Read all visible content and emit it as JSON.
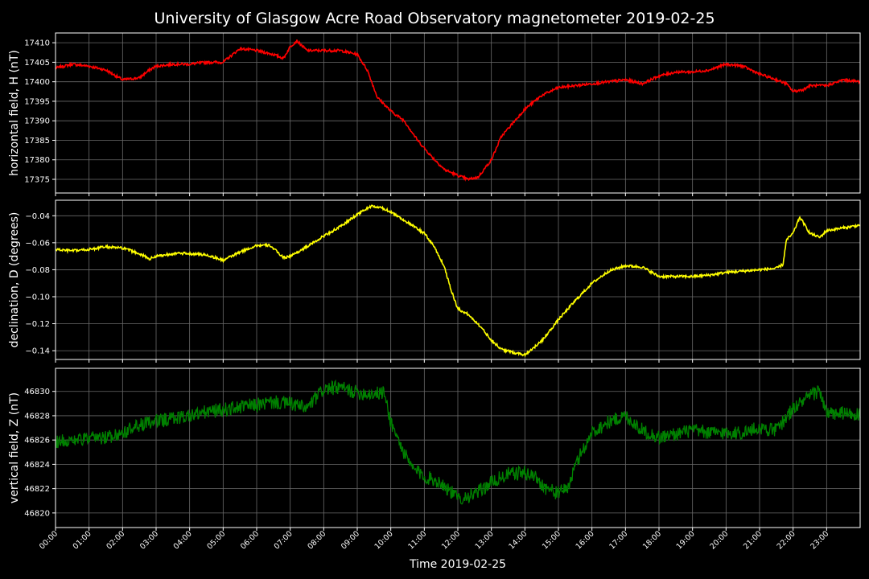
{
  "figure": {
    "title": "University of Glasgow Acre Road Observatory magnetometer 2019-02-25",
    "background": "#000000",
    "foreground": "#ffffff",
    "grid_color": "#6a6a6a"
  },
  "chart_data": [
    {
      "type": "line",
      "panel": "top",
      "title": "",
      "ylabel": "horizontal field, H (nT)",
      "color": "#ff0000",
      "ylim": [
        17371.5,
        17412.5
      ],
      "yticks": [
        17375,
        17380,
        17385,
        17390,
        17395,
        17400,
        17405,
        17410
      ],
      "xlim": [
        0,
        24
      ],
      "grid": true,
      "series": [
        {
          "x": [
            0,
            0.5,
            1,
            1.5,
            2,
            2.5,
            2.8,
            3,
            3.5,
            4,
            4.5,
            5,
            5.5,
            6,
            6.5,
            6.8,
            7,
            7.2,
            7.5,
            8,
            8.5,
            9,
            9.3,
            9.6,
            10,
            10.4,
            10.8,
            11.2,
            11.6,
            12,
            12.3,
            12.6,
            13,
            13.3,
            13.6,
            14,
            14.5,
            15,
            15.5,
            16,
            16.5,
            17,
            17.5,
            18,
            18.5,
            19,
            19.5,
            20,
            20.5,
            21,
            21.5,
            21.8,
            22,
            22.3,
            22.5,
            23,
            23.5,
            24
          ],
          "y": [
            17403.5,
            17404.5,
            17404,
            17403,
            17400.5,
            17401,
            17403,
            17404,
            17404.5,
            17404.5,
            17405,
            17405,
            17408.5,
            17408,
            17407,
            17406,
            17409,
            17410.5,
            17408,
            17408,
            17408,
            17407,
            17403,
            17396,
            17392.5,
            17390,
            17385,
            17381,
            17377.5,
            17376,
            17375,
            17375.5,
            17380,
            17386,
            17389,
            17393,
            17396.5,
            17398.5,
            17399,
            17399.5,
            17400,
            17400.5,
            17399.5,
            17401.5,
            17402.5,
            17402.5,
            17403,
            17404.5,
            17404,
            17402,
            17400.5,
            17399.5,
            17397.5,
            17398,
            17399,
            17399,
            17400.5,
            17400
          ]
        }
      ]
    },
    {
      "type": "line",
      "panel": "middle",
      "title": "",
      "ylabel": "declination, D (degrees)",
      "color": "#ffff00",
      "ylim": [
        -0.1465,
        -0.0285
      ],
      "yticks": [
        -0.14,
        -0.12,
        -0.1,
        -0.08,
        -0.06,
        -0.04
      ],
      "xlim": [
        0,
        24
      ],
      "grid": true,
      "series": [
        {
          "x": [
            0,
            0.5,
            1,
            1.5,
            2,
            2.5,
            2.8,
            3,
            3.5,
            4,
            4.5,
            5,
            5.5,
            6,
            6.4,
            6.8,
            7,
            7.5,
            8,
            8.5,
            9,
            9.4,
            9.7,
            10,
            10.5,
            11,
            11.3,
            11.6,
            11.8,
            12,
            12.3,
            12.6,
            13,
            13.3,
            13.6,
            14,
            14.5,
            15,
            15.5,
            16,
            16.5,
            17,
            17.5,
            18,
            18.5,
            19,
            19.5,
            20,
            20.5,
            21,
            21.5,
            21.7,
            21.8,
            22,
            22.2,
            22.5,
            22.8,
            23,
            23.5,
            24
          ],
          "y": [
            -0.065,
            -0.066,
            -0.065,
            -0.063,
            -0.064,
            -0.068,
            -0.072,
            -0.07,
            -0.068,
            -0.068,
            -0.069,
            -0.073,
            -0.067,
            -0.062,
            -0.062,
            -0.071,
            -0.07,
            -0.063,
            -0.055,
            -0.048,
            -0.039,
            -0.033,
            -0.034,
            -0.037,
            -0.045,
            -0.053,
            -0.063,
            -0.078,
            -0.095,
            -0.109,
            -0.113,
            -0.12,
            -0.132,
            -0.139,
            -0.141,
            -0.143,
            -0.133,
            -0.117,
            -0.103,
            -0.09,
            -0.081,
            -0.077,
            -0.078,
            -0.085,
            -0.085,
            -0.085,
            -0.084,
            -0.082,
            -0.081,
            -0.08,
            -0.079,
            -0.076,
            -0.058,
            -0.053,
            -0.041,
            -0.053,
            -0.056,
            -0.051,
            -0.049,
            -0.047
          ]
        }
      ]
    },
    {
      "type": "line",
      "panel": "bottom",
      "title": "",
      "ylabel": "vertical field, Z (nT)",
      "color": "#008000",
      "ylim": [
        46818.8,
        46831.9
      ],
      "yticks": [
        46820,
        46822,
        46824,
        46826,
        46828,
        46830
      ],
      "xlim": [
        0,
        24
      ],
      "grid": true,
      "series": [
        {
          "x": [
            0,
            0.5,
            1,
            1.5,
            2,
            2.5,
            2.8,
            3,
            3.5,
            4,
            4.5,
            5,
            5.5,
            6,
            6.5,
            7,
            7.5,
            8,
            8.5,
            9,
            9.5,
            9.8,
            10,
            10.3,
            10.6,
            11,
            11.5,
            12,
            12.5,
            13,
            13.5,
            14,
            14.3,
            14.6,
            15,
            15.3,
            15.6,
            16,
            16.5,
            17,
            17.5,
            18,
            18.5,
            19,
            19.5,
            20,
            20.5,
            21,
            21.5,
            22,
            22.5,
            22.8,
            23,
            23.5,
            24
          ],
          "y": [
            46825.9,
            46826,
            46826.1,
            46826.2,
            46826.6,
            46827.2,
            46827.4,
            46827.5,
            46827.8,
            46828,
            46828.3,
            46828.5,
            46828.7,
            46828.9,
            46829.1,
            46829,
            46828.6,
            46830.2,
            46830.3,
            46829.9,
            46829.8,
            46829.9,
            46827.5,
            46825.5,
            46823.8,
            46823,
            46822.5,
            46821.2,
            46821.5,
            46822.5,
            46823.2,
            46823.3,
            46823,
            46822.1,
            46821.6,
            46822.2,
            46824.5,
            46826.6,
            46827.5,
            46828,
            46826.8,
            46826.2,
            46826.5,
            46826.8,
            46826.6,
            46826.6,
            46826.6,
            46827,
            46826.8,
            46828.6,
            46829.6,
            46830.1,
            46828.1,
            46828.2,
            46828
          ]
        }
      ]
    }
  ],
  "xaxis": {
    "xlabel": "Time 2019-02-25",
    "tick_labels": [
      "00:00",
      "01:00",
      "02:00",
      "03:00",
      "04:00",
      "05:00",
      "06:00",
      "07:00",
      "08:00",
      "09:00",
      "10:00",
      "11:00",
      "12:00",
      "13:00",
      "14:00",
      "15:00",
      "16:00",
      "17:00",
      "18:00",
      "19:00",
      "20:00",
      "21:00",
      "22:00",
      "23:00"
    ]
  }
}
